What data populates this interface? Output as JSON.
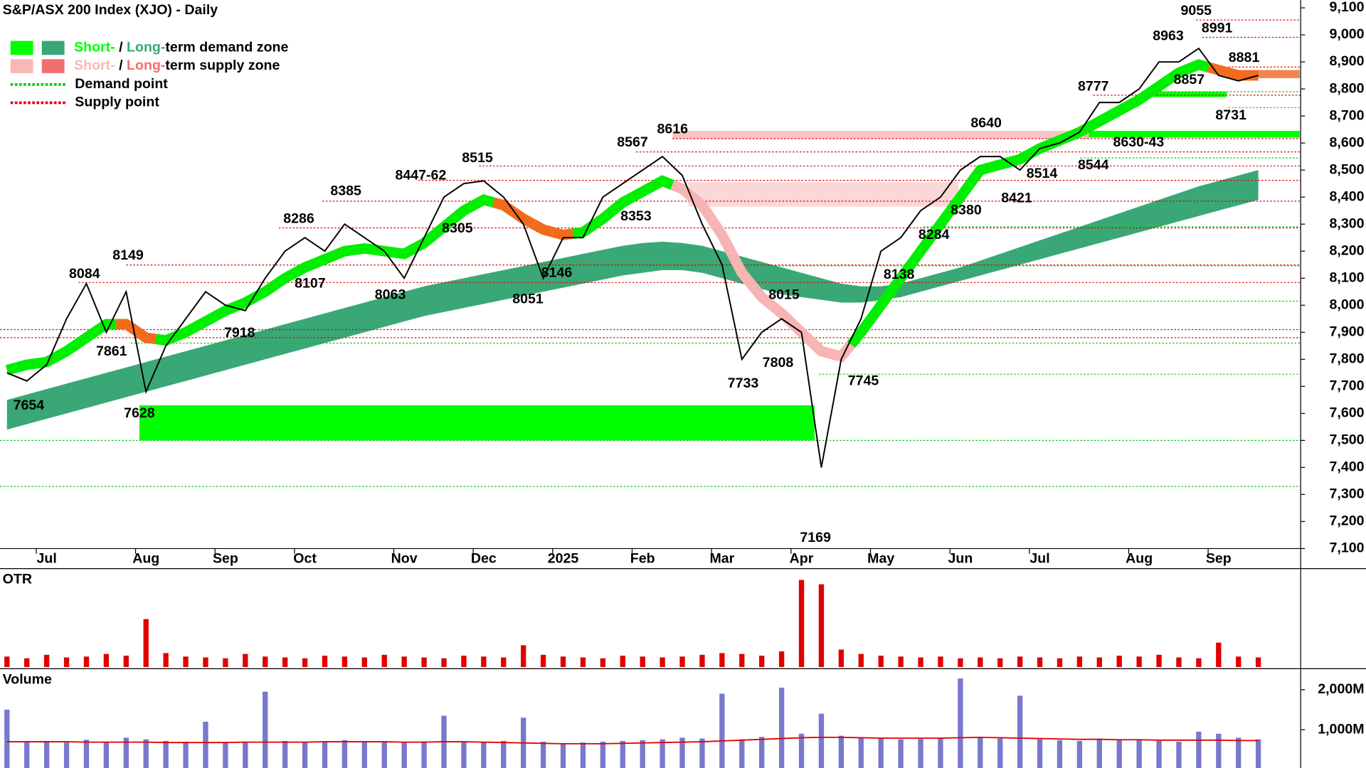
{
  "chart_data": [
    {
      "type": "line",
      "title": "S&P/ASX 200 Index (XJO) - Daily",
      "legend": [
        {
          "parts": [
            "Short-",
            " / ",
            "Long-",
            "term demand zone"
          ],
          "colors": [
            "#00ff00",
            "#3aa876"
          ]
        },
        {
          "parts": [
            "Short-",
            " / ",
            "Long-",
            "term supply zone"
          ],
          "colors": [
            "#f9b8b8",
            "#f07070"
          ]
        },
        {
          "text": "Demand point",
          "color": "#00cc00"
        },
        {
          "text": "Supply point",
          "color": "#e00000"
        }
      ],
      "categories": [
        null,
        null,
        "Jul",
        null,
        null,
        null,
        null,
        "Aug",
        null,
        null,
        null,
        "Sep",
        null,
        null,
        null,
        "Oct",
        null,
        null,
        null,
        null,
        "Nov",
        null,
        null,
        null,
        "Dec",
        null,
        null,
        null,
        "2025",
        null,
        null,
        null,
        "Feb",
        null,
        null,
        null,
        "Mar",
        null,
        null,
        null,
        "Apr",
        null,
        null,
        null,
        "May",
        null,
        null,
        null,
        "Jun",
        null,
        null,
        null,
        "Jul",
        null,
        null,
        null,
        null,
        "Aug",
        null,
        null,
        null,
        "Sep",
        null,
        null
      ],
      "values": [
        7750,
        7720,
        7780,
        7950,
        8080,
        7900,
        8050,
        7680,
        7850,
        7950,
        8050,
        8000,
        7980,
        8100,
        8200,
        8250,
        8200,
        8300,
        8250,
        8200,
        8100,
        8250,
        8400,
        8450,
        8460,
        8400,
        8300,
        8100,
        8250,
        8250,
        8400,
        8450,
        8500,
        8550,
        8480,
        8300,
        8150,
        7800,
        7900,
        7950,
        7900,
        7400,
        7800,
        7950,
        8200,
        8250,
        8350,
        8400,
        8500,
        8550,
        8550,
        8500,
        8580,
        8600,
        8640,
        8750,
        8750,
        8800,
        8900,
        8900,
        8950,
        8850,
        8830,
        8850
      ],
      "color": "#000000",
      "short_term_trend": {
        "values": [
          7760,
          7780,
          7790,
          7830,
          7880,
          7930,
          7930,
          7880,
          7870,
          7900,
          7940,
          7980,
          8010,
          8050,
          8100,
          8140,
          8170,
          8200,
          8210,
          8200,
          8190,
          8230,
          8290,
          8350,
          8390,
          8370,
          8320,
          8280,
          8260,
          8270,
          8320,
          8380,
          8420,
          8460,
          8430,
          8370,
          8260,
          8120,
          8030,
          7970,
          7900,
          7830,
          7810,
          7900,
          8000,
          8100,
          8200,
          8300,
          8400,
          8500,
          8520,
          8540,
          8580,
          8610,
          8640,
          8680,
          8720,
          8760,
          8810,
          8860,
          8890,
          8870,
          8850,
          8850
        ],
        "colors": [
          "#00ee00",
          "#00ee00",
          "#00ee00",
          "#00ee00",
          "#00ee00",
          "#00ee00",
          "#f26b1d",
          "#f26b1d",
          "#00ee00",
          "#00ee00",
          "#00ee00",
          "#00ee00",
          "#00ee00",
          "#00ee00",
          "#00ee00",
          "#00ee00",
          "#00ee00",
          "#00ee00",
          "#00ee00",
          "#00ee00",
          "#00ee00",
          "#00ee00",
          "#00ee00",
          "#00ee00",
          "#00ee00",
          "#f26b1d",
          "#f26b1d",
          "#f26b1d",
          "#f26b1d",
          "#00ee00",
          "#00ee00",
          "#00ee00",
          "#00ee00",
          "#00ee00",
          "#f7b4b4",
          "#f7b4b4",
          "#f7b4b4",
          "#f7b4b4",
          "#f7b4b4",
          "#f7b4b4",
          "#f7b4b4",
          "#f7b4b4",
          "#f7b4b4",
          "#00ee00",
          "#00ee00",
          "#00ee00",
          "#00ee00",
          "#00ee00",
          "#00ee00",
          "#00ee00",
          "#00ee00",
          "#00ee00",
          "#00ee00",
          "#00ee00",
          "#00ee00",
          "#00ee00",
          "#00ee00",
          "#00ee00",
          "#00ee00",
          "#00ee00",
          "#00ee00",
          "#f26b1d",
          "#f26b1d",
          "#f26b1d"
        ]
      },
      "long_term_band": {
        "color": "#3aa876",
        "lower": [
          7540,
          7560,
          7580,
          7600,
          7620,
          7640,
          7660,
          7680,
          7700,
          7720,
          7740,
          7760,
          7780,
          7800,
          7820,
          7840,
          7860,
          7880,
          7900,
          7920,
          7940,
          7960,
          7975,
          7990,
          8005,
          8020,
          8035,
          8050,
          8065,
          8080,
          8095,
          8110,
          8120,
          8130,
          8130,
          8120,
          8100,
          8080,
          8060,
          8040,
          8030,
          8020,
          8010,
          8010,
          8020,
          8030,
          8050,
          8070,
          8090,
          8110,
          8130,
          8150,
          8170,
          8190,
          8210,
          8230,
          8250,
          8270,
          8290,
          8310,
          8330,
          8350,
          8370,
          8390
        ],
        "upper": [
          7650,
          7670,
          7690,
          7710,
          7730,
          7750,
          7770,
          7790,
          7810,
          7830,
          7850,
          7870,
          7890,
          7910,
          7930,
          7950,
          7970,
          7990,
          8010,
          8030,
          8050,
          8070,
          8085,
          8100,
          8115,
          8130,
          8145,
          8160,
          8175,
          8190,
          8205,
          8220,
          8230,
          8235,
          8230,
          8220,
          8200,
          8180,
          8160,
          8140,
          8120,
          8100,
          8080,
          8070,
          8070,
          8080,
          8100,
          8120,
          8140,
          8165,
          8190,
          8215,
          8240,
          8265,
          8290,
          8315,
          8340,
          8365,
          8390,
          8415,
          8440,
          8460,
          8480,
          8500
        ]
      },
      "zones": [
        {
          "range": [
            7500,
            7630
          ],
          "color": "#00ff00"
        },
        {
          "range": [
            8620,
            8645
          ],
          "color": "#00ff00"
        },
        {
          "range": [
            8770,
            8790
          ],
          "color": "#00ff00"
        },
        {
          "range": [
            8615,
            8645
          ],
          "color": "#f9b8b8"
        },
        {
          "range": [
            8365,
            8455
          ],
          "color": "#fbd0d0"
        },
        {
          "range": [
            8840,
            8870
          ],
          "color": "#f07030"
        }
      ],
      "demand_points": [
        7330,
        7500,
        7745,
        7860,
        8015,
        8146,
        8290,
        8545,
        8731,
        8790
      ],
      "supply_points": [
        7880,
        7910,
        8084,
        8149,
        8286,
        8385,
        8462,
        8515,
        8567,
        8616,
        8777,
        8881,
        8991,
        9055
      ],
      "annotations": [
        "7654",
        "8084",
        "7861",
        "8149",
        "7628",
        "7918",
        "8286",
        "8107",
        "8385",
        "8063",
        "8447-62",
        "8305",
        "8515",
        "8051",
        "8146",
        "8567",
        "8616",
        "8353",
        "8015",
        "7733",
        "7808",
        "7169",
        "7745",
        "8138",
        "8284",
        "8380",
        "8640",
        "8421",
        "8514",
        "8544",
        "8630-43",
        "8777",
        "8857",
        "8731",
        "8963",
        "9055",
        "8991",
        "8881"
      ],
      "ylim": [
        7100,
        9100
      ],
      "yticks": [
        {
          "value": 7100,
          "label": "7,100"
        },
        {
          "value": 7200,
          "label": "7,200"
        },
        {
          "value": 7300,
          "label": "7,300"
        },
        {
          "value": 7400,
          "label": "7,400"
        },
        {
          "value": 7500,
          "label": "7,500"
        },
        {
          "value": 7600,
          "label": "7,600"
        },
        {
          "value": 7700,
          "label": "7,700"
        },
        {
          "value": 7800,
          "label": "7,800"
        },
        {
          "value": 7900,
          "label": "7,900"
        },
        {
          "value": 8000,
          "label": "8,000"
        },
        {
          "value": 8100,
          "label": "8,100"
        },
        {
          "value": 8200,
          "label": "8,200"
        },
        {
          "value": 8300,
          "label": "8,300"
        },
        {
          "value": 8400,
          "label": "8,400"
        },
        {
          "value": 8500,
          "label": "8,500"
        },
        {
          "value": 8600,
          "label": "8,600"
        },
        {
          "value": 8700,
          "label": "8,700"
        },
        {
          "value": 8800,
          "label": "8,800"
        },
        {
          "value": 8900,
          "label": "8,900"
        },
        {
          "value": 9000,
          "label": "9,000"
        },
        {
          "value": 9100,
          "label": "9,100"
        }
      ]
    },
    {
      "type": "bar",
      "title": "OTR",
      "color": "#e00000",
      "ylim": [
        0,
        110
      ],
      "values": [
        12,
        10,
        14,
        11,
        12,
        15,
        13,
        55,
        16,
        12,
        11,
        10,
        15,
        12,
        11,
        10,
        13,
        12,
        11,
        14,
        12,
        11,
        10,
        13,
        12,
        11,
        25,
        14,
        12,
        11,
        10,
        13,
        12,
        11,
        12,
        14,
        16,
        15,
        13,
        18,
        100,
        95,
        20,
        15,
        13,
        12,
        11,
        12,
        10,
        11,
        10,
        12,
        11,
        10,
        12,
        11,
        13,
        12,
        14,
        11,
        10,
        28,
        12,
        11
      ]
    },
    {
      "type": "bar",
      "title": "Volume",
      "color": "#7878cc",
      "ylim": [
        0,
        2480
      ],
      "yticks": [
        {
          "value": 1000,
          "label": "1,000M"
        },
        {
          "value": 2000,
          "label": "2,000M"
        }
      ],
      "values": [
        1500,
        700,
        720,
        680,
        750,
        700,
        800,
        760,
        720,
        700,
        1200,
        690,
        700,
        1950,
        720,
        680,
        700,
        740,
        690,
        700,
        680,
        710,
        1350,
        700,
        690,
        720,
        1300,
        700,
        650,
        680,
        700,
        720,
        740,
        760,
        800,
        780,
        1900,
        760,
        820,
        2050,
        900,
        1400,
        850,
        800,
        780,
        760,
        770,
        790,
        2280,
        800,
        780,
        1850,
        760,
        740,
        720,
        780,
        760,
        740,
        720,
        700,
        950,
        900,
        800,
        760
      ],
      "average": {
        "color": "#e00000",
        "values": [
          700,
          700,
          700,
          700,
          690,
          690,
          690,
          690,
          680,
          680,
          680,
          680,
          690,
          690,
          690,
          690,
          700,
          700,
          700,
          700,
          690,
          690,
          700,
          700,
          690,
          680,
          670,
          660,
          650,
          650,
          650,
          660,
          670,
          680,
          690,
          700,
          720,
          740,
          760,
          780,
          800,
          810,
          810,
          800,
          790,
          790,
          790,
          790,
          800,
          810,
          800,
          790,
          780,
          770,
          760,
          760,
          750,
          750,
          740,
          740,
          740,
          740,
          730,
          730
        ]
      }
    }
  ]
}
